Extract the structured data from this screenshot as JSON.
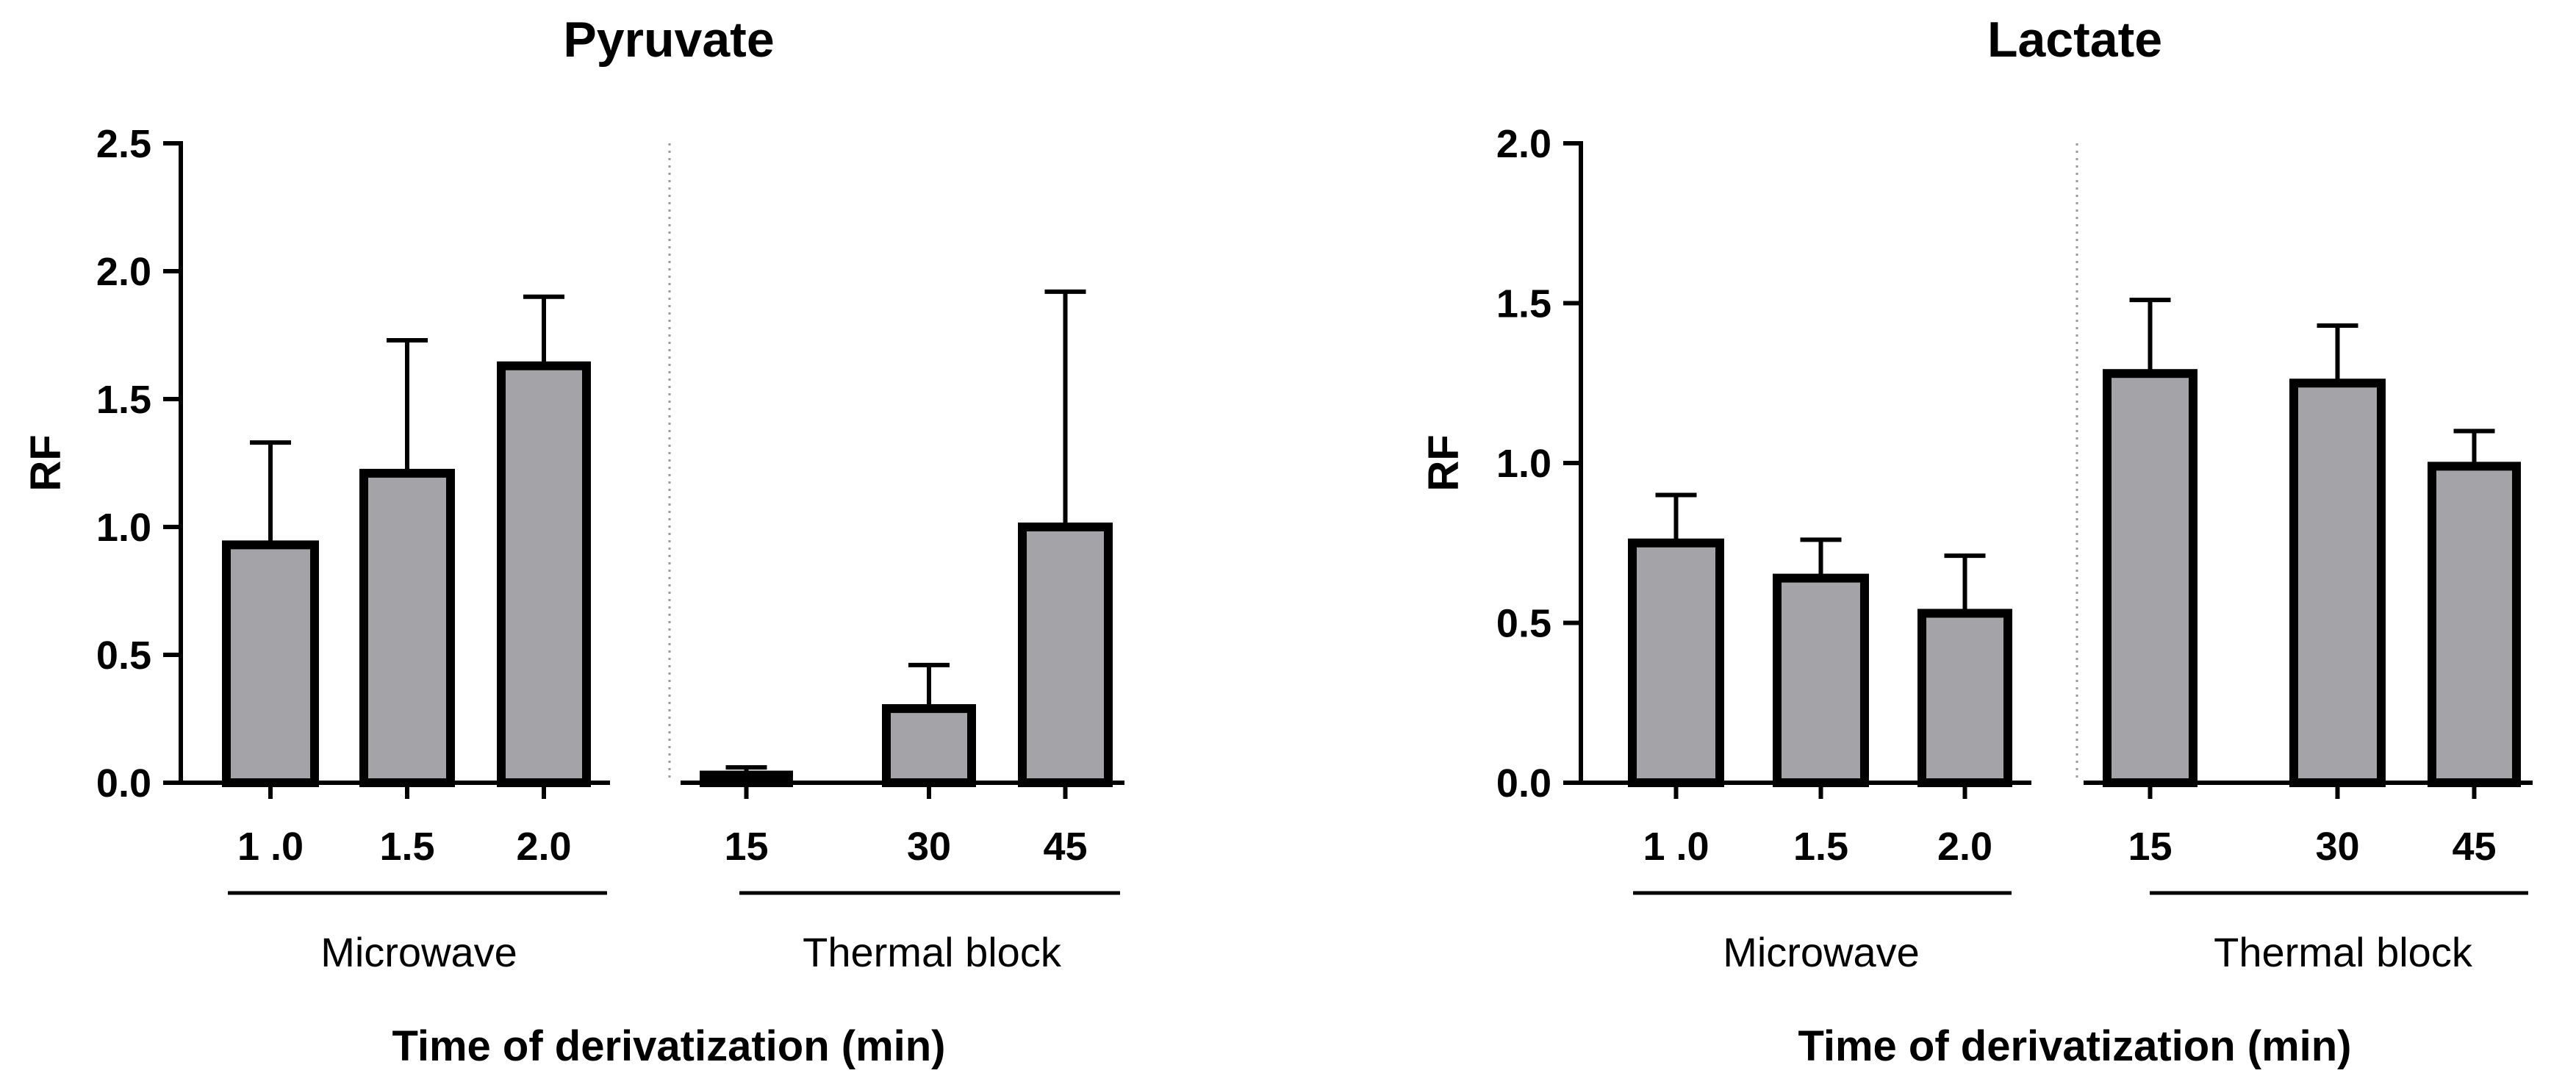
{
  "chart_data": [
    {
      "type": "bar",
      "title": "Pyruvate",
      "ylabel": "RF",
      "xlabel": "Time of derivatization (min)",
      "ylim": [
        0,
        2.5
      ],
      "yticks": [
        "0.0",
        "0.5",
        "1.0",
        "1.5",
        "2.0",
        "2.5"
      ],
      "groups": [
        {
          "label": "Microwave",
          "categories": [
            "1 .0",
            "1.5",
            "2.0"
          ],
          "values": [
            0.93,
            1.21,
            1.63
          ],
          "errors": [
            0.4,
            0.52,
            0.27
          ]
        },
        {
          "label": "Thermal block",
          "categories": [
            "15",
            "30",
            "45"
          ],
          "values": [
            0.03,
            0.29,
            1.0
          ],
          "errors": [
            0.03,
            0.17,
            0.92
          ]
        }
      ],
      "colors": {
        "bar": "#a3a3a8",
        "stroke": "#000000",
        "divider": "#9a9a9a"
      }
    },
    {
      "type": "bar",
      "title": "Lactate",
      "ylabel": "RF",
      "xlabel": "Time of derivatization (min)",
      "ylim": [
        0,
        2.0
      ],
      "yticks": [
        "0.0",
        "0.5",
        "1.0",
        "1.5",
        "2.0"
      ],
      "groups": [
        {
          "label": "Microwave",
          "categories": [
            "1 .0",
            "1.5",
            "2.0"
          ],
          "values": [
            0.75,
            0.64,
            0.53
          ],
          "errors": [
            0.15,
            0.12,
            0.18
          ]
        },
        {
          "label": "Thermal block",
          "categories": [
            "15",
            "30",
            "45"
          ],
          "values": [
            1.28,
            1.25,
            0.99
          ],
          "errors": [
            0.23,
            0.18,
            0.11
          ]
        }
      ],
      "colors": {
        "bar": "#a3a3a8",
        "stroke": "#000000",
        "divider": "#9a9a9a"
      }
    }
  ]
}
